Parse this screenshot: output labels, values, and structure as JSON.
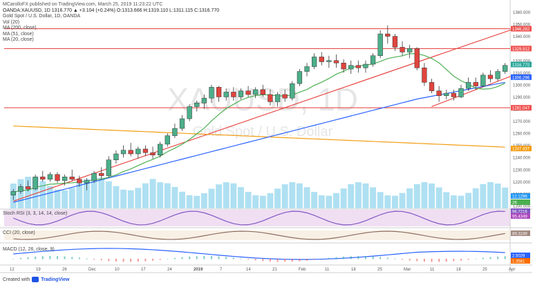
{
  "header": {
    "publisher_line": "MCarolloFX published on TradingView.com, March 25, 2019 11:23:22 UTC",
    "symbol_line": "OANDA:XAUUSD, 1D 1316.770 ▲ +3.104 (+0.24%) O:1313.666 H:1319.110 L:1311.115 C:1316.770"
  },
  "legend": [
    "Gold Spot / U.S. Dollar, 1D, OANDA",
    "Vol (20)",
    "MA (200, close)",
    "MA (51, close)",
    "MA (20, close)"
  ],
  "watermark": {
    "symbol": "XAUUSD, 1D",
    "name": "Gold Spot / U.S. Dollar"
  },
  "colors": {
    "up": "#26a69a",
    "down": "#ef5350",
    "candle_up": "#4caf8a",
    "candle_down": "#e0443e",
    "ma200": "#f39c12",
    "ma51": "#2962ff",
    "ma20": "#4caf50",
    "trend": "#e53935",
    "volume": "#6ec6e8",
    "rsi_fill": "#e1bee7",
    "cci_fill": "#f5e6d3",
    "macd": "#2962ff",
    "signal": "#ff6d00"
  },
  "chart_data": {
    "type": "candlestick",
    "y_axis_ticks": [
      1200,
      1210,
      1220,
      1230,
      1240,
      1250,
      1260,
      1270,
      1280,
      1290,
      1300,
      1310,
      1320,
      1330,
      1340,
      1350,
      1360
    ],
    "ylim": [
      1198,
      1362
    ],
    "x_axis_labels": [
      "12",
      "19",
      "26",
      "Dec",
      "10",
      "17",
      "24",
      "2019",
      "7",
      "14",
      "21",
      "Feb",
      "11",
      "18",
      "25",
      "Mar",
      "11",
      "18",
      "25",
      "Apr"
    ],
    "horizontal_levels": [
      1346.282,
      1329.912,
      1281.047
    ],
    "price_tags": [
      {
        "label": "1346.282",
        "value": 1346.282,
        "color": "#ef5350"
      },
      {
        "label": "1329.912",
        "value": 1329.912,
        "color": "#ef5350"
      },
      {
        "label": "1316.770",
        "value": 1316.77,
        "color": "#26a69a"
      },
      {
        "label": "1306.296",
        "value": 1306.296,
        "color": "#2962ff"
      },
      {
        "label": "1281.047",
        "value": 1281.047,
        "color": "#ef5350"
      },
      {
        "label": "1247.437",
        "value": 1247.437,
        "color": "#f39c12"
      }
    ],
    "candles": [
      [
        1209,
        1214,
        1205,
        1212
      ],
      [
        1212,
        1218,
        1210,
        1216
      ],
      [
        1216,
        1221,
        1212,
        1214
      ],
      [
        1214,
        1226,
        1213,
        1224
      ],
      [
        1224,
        1229,
        1220,
        1222
      ],
      [
        1222,
        1228,
        1220,
        1226
      ],
      [
        1226,
        1228,
        1219,
        1221
      ],
      [
        1221,
        1226,
        1217,
        1224
      ],
      [
        1224,
        1230,
        1221,
        1222
      ],
      [
        1222,
        1225,
        1216,
        1219
      ],
      [
        1219,
        1223,
        1213,
        1221
      ],
      [
        1221,
        1229,
        1219,
        1227
      ],
      [
        1227,
        1232,
        1222,
        1225
      ],
      [
        1225,
        1241,
        1224,
        1238
      ],
      [
        1238,
        1246,
        1235,
        1243
      ],
      [
        1243,
        1250,
        1240,
        1246
      ],
      [
        1246,
        1252,
        1241,
        1243
      ],
      [
        1243,
        1249,
        1239,
        1247
      ],
      [
        1247,
        1250,
        1241,
        1244
      ],
      [
        1244,
        1249,
        1239,
        1242
      ],
      [
        1242,
        1253,
        1240,
        1251
      ],
      [
        1251,
        1260,
        1249,
        1258
      ],
      [
        1258,
        1268,
        1256,
        1264
      ],
      [
        1264,
        1275,
        1262,
        1272
      ],
      [
        1272,
        1284,
        1270,
        1282
      ],
      [
        1282,
        1287,
        1278,
        1285
      ],
      [
        1285,
        1292,
        1280,
        1289
      ],
      [
        1289,
        1300,
        1285,
        1298
      ],
      [
        1298,
        1299,
        1286,
        1290
      ],
      [
        1290,
        1297,
        1287,
        1294
      ],
      [
        1294,
        1298,
        1287,
        1290
      ],
      [
        1290,
        1297,
        1288,
        1295
      ],
      [
        1295,
        1299,
        1290,
        1292
      ],
      [
        1292,
        1298,
        1289,
        1296
      ],
      [
        1296,
        1300,
        1290,
        1292
      ],
      [
        1292,
        1296,
        1283,
        1286
      ],
      [
        1286,
        1294,
        1282,
        1292
      ],
      [
        1292,
        1296,
        1286,
        1289
      ],
      [
        1289,
        1303,
        1287,
        1301
      ],
      [
        1301,
        1313,
        1299,
        1311
      ],
      [
        1311,
        1318,
        1307,
        1315
      ],
      [
        1315,
        1326,
        1313,
        1323
      ],
      [
        1323,
        1327,
        1316,
        1319
      ],
      [
        1319,
        1324,
        1314,
        1320
      ],
      [
        1320,
        1325,
        1314,
        1318
      ],
      [
        1318,
        1321,
        1310,
        1313
      ],
      [
        1313,
        1320,
        1309,
        1316
      ],
      [
        1316,
        1320,
        1310,
        1314
      ],
      [
        1314,
        1320,
        1310,
        1317
      ],
      [
        1317,
        1326,
        1315,
        1324
      ],
      [
        1324,
        1345,
        1322,
        1342
      ],
      [
        1342,
        1349,
        1334,
        1340
      ],
      [
        1340,
        1342,
        1328,
        1331
      ],
      [
        1331,
        1336,
        1324,
        1327
      ],
      [
        1327,
        1333,
        1322,
        1330
      ],
      [
        1330,
        1331,
        1312,
        1314
      ],
      [
        1314,
        1318,
        1299,
        1302
      ],
      [
        1302,
        1305,
        1293,
        1295
      ],
      [
        1295,
        1299,
        1286,
        1291
      ],
      [
        1291,
        1296,
        1288,
        1293
      ],
      [
        1293,
        1296,
        1287,
        1290
      ],
      [
        1290,
        1300,
        1289,
        1297
      ],
      [
        1297,
        1306,
        1295,
        1302
      ],
      [
        1302,
        1306,
        1296,
        1299
      ],
      [
        1299,
        1310,
        1298,
        1308
      ],
      [
        1308,
        1312,
        1302,
        1305
      ],
      [
        1305,
        1313,
        1303,
        1311
      ],
      [
        1311,
        1318,
        1309,
        1316
      ]
    ]
  },
  "panes": {
    "stoch_rsi": {
      "label": "Stoch RSI (3, 3, 14, 14, close)",
      "values": [
        "96.7216",
        "95.4349"
      ]
    },
    "cci": {
      "label": "CCI (20, close)",
      "value": "89.3249"
    },
    "macd": {
      "label": "MACD (12, 26, close, 9)",
      "values": [
        "2.5029",
        "1.3581"
      ]
    },
    "volume": {
      "values": [
        "12.1296",
        "26"
      ]
    }
  },
  "footer": {
    "created": "Created with",
    "brand": "TradingView"
  }
}
